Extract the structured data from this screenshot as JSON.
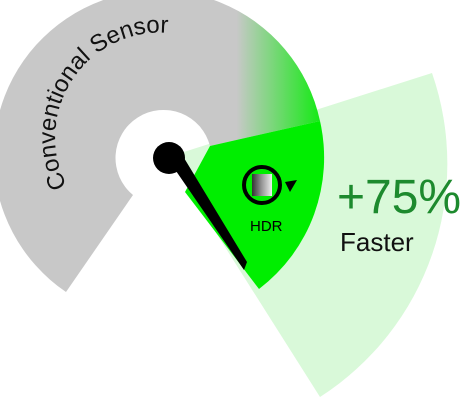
{
  "gauge": {
    "sensor_label": "Conventional Sensor",
    "hdr_label": "HDR",
    "gain_value": "+75%",
    "gain_caption": "Faster"
  },
  "colors": {
    "conventional_gray": "#c8c8c8",
    "hdr_green": "#00ee00",
    "light_green": "#d9f9d9",
    "value_green": "#1d8a2e",
    "needle": "#000000"
  }
}
